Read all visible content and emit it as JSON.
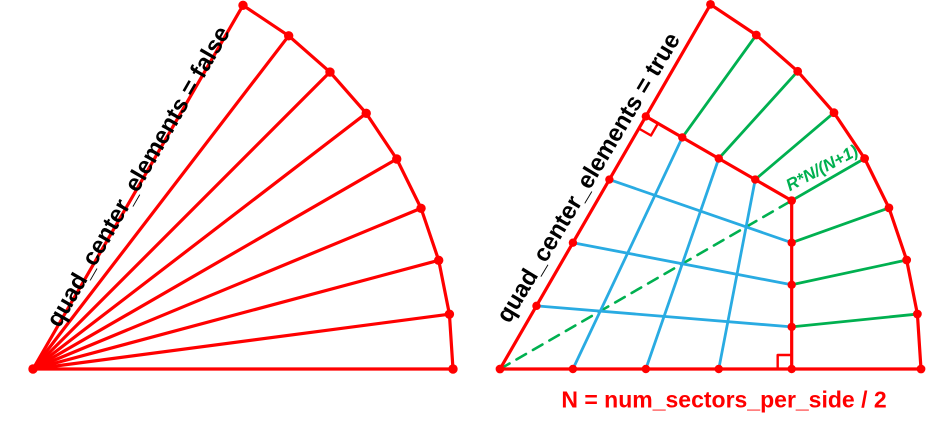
{
  "colors": {
    "red": "#ff0000",
    "green": "#00b050",
    "blue": "#29abe2",
    "black": "#000000"
  },
  "geometry": {
    "sector_span_deg": 60,
    "num_sectors_per_side": 8,
    "N": 4
  },
  "left_panel": {
    "label": "quad_center_elements = false",
    "apex": [
      33,
      369
    ],
    "radius": 420
  },
  "right_panel": {
    "label": "quad_center_elements = true",
    "inner_radius_label": "R*N/(N+1)",
    "apex": [
      500,
      369
    ],
    "radius": 421
  },
  "bottom_label": "N = num_sectors_per_side / 2"
}
